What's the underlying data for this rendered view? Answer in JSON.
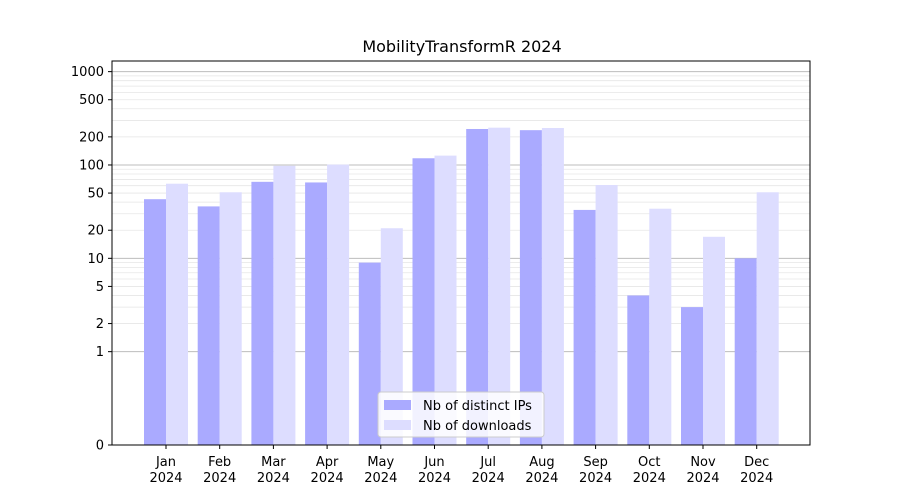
{
  "chart_data": {
    "type": "bar",
    "title": "MobilityTransformR 2024",
    "xlabel": "",
    "ylabel": "",
    "yscale": "symlog",
    "ylim": [
      0,
      1300
    ],
    "y_ticks": [
      0,
      1,
      2,
      5,
      10,
      20,
      50,
      100,
      200,
      500,
      1000
    ],
    "grid": true,
    "legend_position": "bottom-center",
    "categories": [
      [
        "Jan",
        "2024"
      ],
      [
        "Feb",
        "2024"
      ],
      [
        "Mar",
        "2024"
      ],
      [
        "Apr",
        "2024"
      ],
      [
        "May",
        "2024"
      ],
      [
        "Jun",
        "2024"
      ],
      [
        "Jul",
        "2024"
      ],
      [
        "Aug",
        "2024"
      ],
      [
        "Sep",
        "2024"
      ],
      [
        "Oct",
        "2024"
      ],
      [
        "Nov",
        "2024"
      ],
      [
        "Dec",
        "2024"
      ]
    ],
    "series": [
      {
        "name": "Nb of distinct IPs",
        "color": "#aaaaff",
        "values": [
          43,
          36,
          66,
          65,
          9,
          118,
          243,
          236,
          33,
          4,
          3,
          10
        ]
      },
      {
        "name": "Nb of downloads",
        "color": "#ddddff",
        "values": [
          63,
          51,
          98,
          101,
          21,
          126,
          251,
          249,
          61,
          34,
          17,
          51
        ]
      }
    ]
  }
}
